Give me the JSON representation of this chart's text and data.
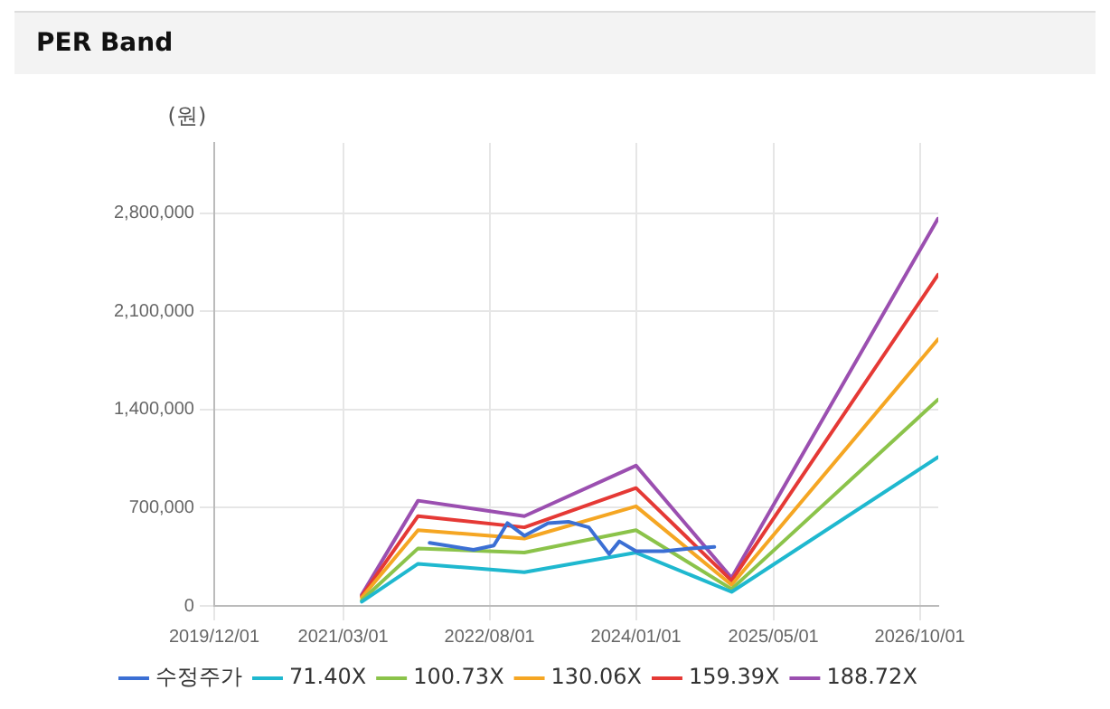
{
  "chart_data": {
    "type": "line",
    "title": "PER Band",
    "ylabel": "(원)",
    "xlim": [
      "2019-12-01",
      "2026-12-05"
    ],
    "xticks": [
      {
        "value": "2019-12-01",
        "label": "2019/12/01"
      },
      {
        "value": "2021-03-01",
        "label": "2021/03/01"
      },
      {
        "value": "2022-08-01",
        "label": "2022/08/01"
      },
      {
        "value": "2024-01-01",
        "label": "2024/01/01"
      },
      {
        "value": "2025-05-01",
        "label": "2025/05/01"
      },
      {
        "value": "2026-10-01",
        "label": "2026/10/01"
      }
    ],
    "ylim": [
      0,
      3300000
    ],
    "yticks": [
      {
        "value": 0,
        "label": "0"
      },
      {
        "value": 700000,
        "label": "700,000"
      },
      {
        "value": 1400000,
        "label": "1,400,000"
      },
      {
        "value": 2100000,
        "label": "2,100,000"
      },
      {
        "value": 2800000,
        "label": "2,800,000"
      }
    ],
    "grid": true,
    "legend": "bottom",
    "marker": "none",
    "line_style": "solid",
    "series": [
      {
        "name": "수정주가",
        "color": "#3b6fd4",
        "x": [
          "2022-01-01",
          "2022-06-05",
          "2022-08-16",
          "2022-10-03",
          "2022-12-02",
          "2023-02-24",
          "2023-05-07",
          "2023-07-18",
          "2023-09-28",
          "2023-11-03",
          "2024-01-01",
          "2024-04-07",
          "2024-07-12",
          "2024-10-04"
        ],
        "values": [
          450000,
          400000,
          430000,
          590000,
          500000,
          590000,
          600000,
          560000,
          370000,
          460000,
          390000,
          390000,
          410000,
          420000
        ]
      },
      {
        "name": "71.40X",
        "color": "#1fb8cf",
        "x": [
          "2021-05-06",
          "2021-11-21",
          "2022-12-02",
          "2024-01-01",
          "2024-12-04",
          "2026-12-04"
        ],
        "values": [
          30000,
          300000,
          240000,
          380000,
          100000,
          1060000
        ]
      },
      {
        "name": "100.73X",
        "color": "#8bc34a",
        "x": [
          "2021-05-06",
          "2021-11-21",
          "2022-12-02",
          "2024-01-01",
          "2024-12-04",
          "2026-12-04"
        ],
        "values": [
          40000,
          410000,
          380000,
          540000,
          120000,
          1470000
        ]
      },
      {
        "name": "130.06X",
        "color": "#f5a623",
        "x": [
          "2021-05-06",
          "2021-11-21",
          "2022-12-02",
          "2024-01-01",
          "2024-12-04",
          "2026-12-04"
        ],
        "values": [
          60000,
          540000,
          480000,
          710000,
          150000,
          1900000
        ]
      },
      {
        "name": "159.39X",
        "color": "#e53935",
        "x": [
          "2021-05-06",
          "2021-11-21",
          "2022-12-02",
          "2024-01-01",
          "2024-12-04",
          "2026-12-04"
        ],
        "values": [
          70000,
          640000,
          560000,
          840000,
          180000,
          2360000
        ]
      },
      {
        "name": "188.72X",
        "color": "#9b4fb0",
        "x": [
          "2021-05-06",
          "2021-11-21",
          "2022-12-02",
          "2024-01-01",
          "2024-12-04",
          "2026-12-04"
        ],
        "values": [
          80000,
          750000,
          640000,
          1000000,
          200000,
          2760000
        ]
      }
    ]
  }
}
